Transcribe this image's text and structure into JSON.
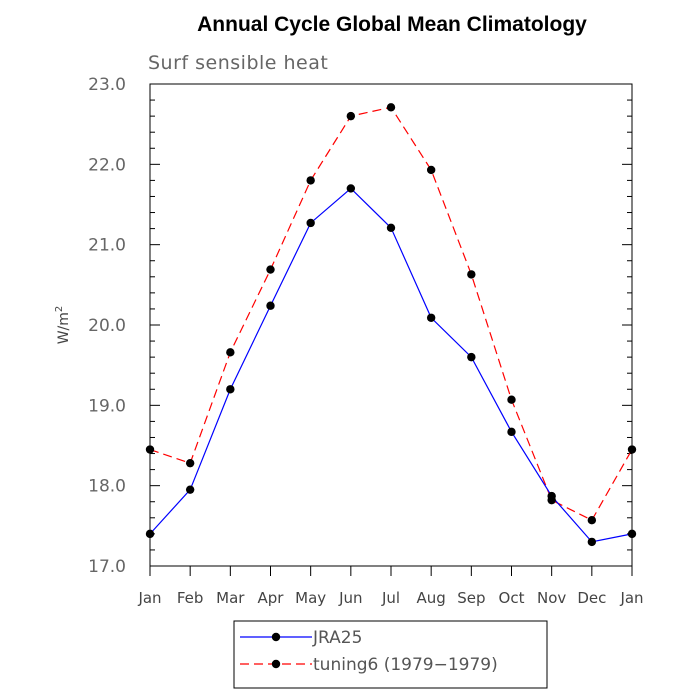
{
  "chart_data": {
    "type": "line",
    "title": "Annual Cycle Global Mean Climatology",
    "subtitle": "Surf sensible heat",
    "ylabel": "W/m",
    "ylabel_sup": "2",
    "ylim": [
      17.0,
      23.0
    ],
    "yticks": [
      "17.0",
      "18.0",
      "19.0",
      "20.0",
      "21.0",
      "22.0",
      "23.0"
    ],
    "categories": [
      "Jan",
      "Feb",
      "Mar",
      "Apr",
      "May",
      "Jun",
      "Jul",
      "Aug",
      "Sep",
      "Oct",
      "Nov",
      "Dec",
      "Jan"
    ],
    "grid": false,
    "legend_position": "bottom",
    "series": [
      {
        "name": "JRA25",
        "color": "#0000ff",
        "dash": "solid",
        "marker": "circle",
        "values": [
          17.4,
          17.95,
          19.2,
          20.24,
          21.27,
          21.7,
          21.21,
          20.09,
          19.6,
          18.67,
          17.87,
          17.3,
          17.4
        ]
      },
      {
        "name": "tuning6 (1979−1979)",
        "color": "#ff0000",
        "dash": "dashed",
        "marker": "circle",
        "values": [
          18.45,
          18.28,
          19.66,
          20.69,
          21.8,
          22.6,
          22.71,
          21.93,
          20.63,
          19.07,
          17.82,
          17.57,
          18.45
        ]
      }
    ]
  }
}
